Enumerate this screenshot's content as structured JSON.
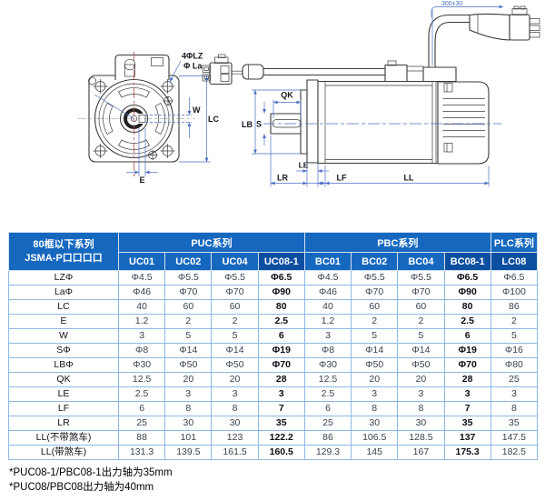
{
  "drawing": {
    "labels": {
      "four_phi_lz": "4ΦLZ",
      "phi_la": "Φ La",
      "w": "W",
      "lc": "LC",
      "e": "E",
      "qk": "QK",
      "lb": "LB",
      "s": "S",
      "le": "LE",
      "lr": "LR",
      "lf": "LF",
      "ll": "LL",
      "cable_length": "300±30"
    }
  },
  "table": {
    "corner_line1": "80框以下系列",
    "corner_line2": "JSMA-P口口口口",
    "groups": [
      {
        "label": "PUC系列",
        "span": 4
      },
      {
        "label": "PBC系列",
        "span": 4
      },
      {
        "label": "PLC系列",
        "span": 1
      }
    ],
    "columns": [
      "UC01",
      "UC02",
      "UC04",
      "UC08-1",
      "BC01",
      "BC02",
      "BC04",
      "BC08-1",
      "LC08"
    ],
    "highlight_columns": [
      3,
      7,
      8
    ],
    "bold_value_columns": [
      3,
      7
    ],
    "rows": [
      {
        "label": "LZΦ",
        "values": [
          "Φ4.5",
          "Φ5.5",
          "Φ5.5",
          "Φ6.5",
          "Φ4.5",
          "Φ5.5",
          "Φ5.5",
          "Φ6.5",
          "Φ6.5"
        ]
      },
      {
        "label": "LaΦ",
        "values": [
          "Φ46",
          "Φ70",
          "Φ70",
          "Φ90",
          "Φ46",
          "Φ70",
          "Φ70",
          "Φ90",
          "Φ100"
        ]
      },
      {
        "label": "LC",
        "values": [
          "40",
          "60",
          "60",
          "80",
          "40",
          "60",
          "60",
          "80",
          "86"
        ]
      },
      {
        "label": "E",
        "values": [
          "1.2",
          "2",
          "2",
          "2.5",
          "1.2",
          "2",
          "2",
          "2.5",
          "2"
        ]
      },
      {
        "label": "W",
        "values": [
          "3",
          "5",
          "5",
          "6",
          "3",
          "5",
          "5",
          "6",
          "5"
        ]
      },
      {
        "label": "SΦ",
        "values": [
          "Φ8",
          "Φ14",
          "Φ14",
          "Φ19",
          "Φ8",
          "Φ14",
          "Φ14",
          "Φ19",
          "Φ16"
        ]
      },
      {
        "label": "LBΦ",
        "values": [
          "Φ30",
          "Φ50",
          "Φ50",
          "Φ70",
          "Φ30",
          "Φ50",
          "Φ50",
          "Φ70",
          "Φ80"
        ]
      },
      {
        "label": "QK",
        "values": [
          "12.5",
          "20",
          "20",
          "28",
          "12.5",
          "20",
          "20",
          "28",
          "25"
        ]
      },
      {
        "label": "LE",
        "values": [
          "2.5",
          "3",
          "3",
          "3",
          "2.5",
          "3",
          "3",
          "3",
          "3"
        ]
      },
      {
        "label": "LF",
        "values": [
          "6",
          "8",
          "8",
          "7",
          "6",
          "8",
          "8",
          "7",
          "8"
        ]
      },
      {
        "label": "LR",
        "values": [
          "25",
          "30",
          "30",
          "35",
          "25",
          "30",
          "30",
          "35",
          "35"
        ]
      },
      {
        "label": "LL(不带煞车)",
        "values": [
          "88",
          "101",
          "123",
          "122.2",
          "86",
          "106.5",
          "128.5",
          "137",
          "147.5"
        ]
      },
      {
        "label": "LL(带煞车)",
        "values": [
          "131.3",
          "139.5",
          "161.5",
          "160.5",
          "129.3",
          "145",
          "167",
          "175.3",
          "182.5"
        ]
      }
    ]
  },
  "footnotes": {
    "line1": "*PUC08-1/PBC08-1出力轴为35mm",
    "line2": "*PUC08/PBC08出力轴为40mm"
  },
  "colors": {
    "header_blue": "#1668bf",
    "header_dark": "#0c4fa0",
    "grid_line": "#8fb8e0",
    "table_border": "#4f93d2",
    "dim_blue": "#4a6fc4",
    "draw_line": "#3a3a3a",
    "centerline_red": "#b05050",
    "data_text": "#39424e"
  }
}
